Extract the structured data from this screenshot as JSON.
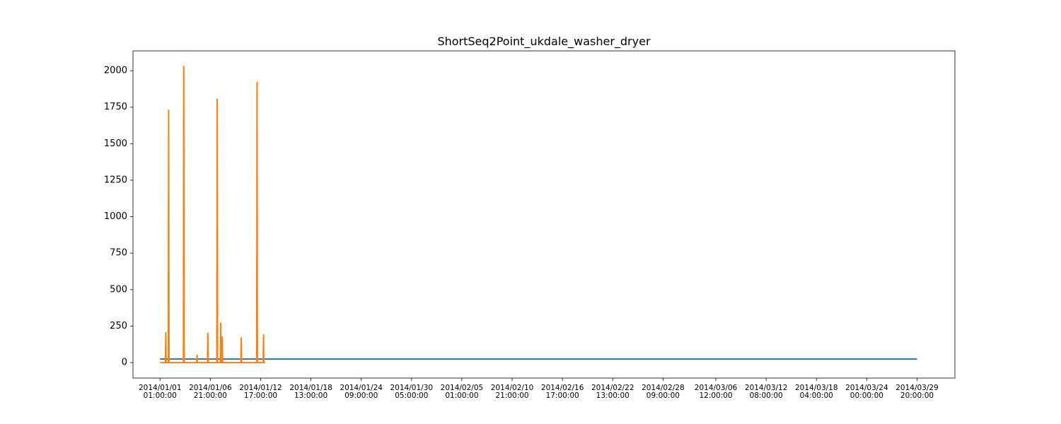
{
  "chart_data": {
    "type": "line",
    "title": "ShortSeq2Point_ukdale_washer_dryer",
    "series": [
      {
        "color": "#1f77b4",
        "x": [
          "2014-01-01T01:00",
          "2014-03-29T20:00"
        ],
        "values": [
          24,
          24
        ]
      },
      {
        "color": "#ff7f0e",
        "x": [
          "2014-01-01T01:00",
          "2014-01-01T16:00",
          "2014-01-01T17:00",
          "2014-01-01T18:00",
          "2014-01-02T00:00",
          "2014-01-02T01:00",
          "2014-01-02T02:00",
          "2014-01-03T18:00",
          "2014-01-03T19:00",
          "2014-01-03T20:00",
          "2014-01-05T07:00",
          "2014-01-05T08:00",
          "2014-01-05T09:00",
          "2014-01-06T13:00",
          "2014-01-06T14:00",
          "2014-01-06T15:00",
          "2014-01-07T15:00",
          "2014-01-07T16:00",
          "2014-01-07T17:00",
          "2014-01-08T01:00",
          "2014-01-08T02:00",
          "2014-01-08T03:00",
          "2014-01-08T05:00",
          "2014-01-08T06:00",
          "2014-01-08T07:00",
          "2014-01-10T10:00",
          "2014-01-10T11:00",
          "2014-01-10T12:00",
          "2014-01-12T06:00",
          "2014-01-12T07:00",
          "2014-01-12T08:00",
          "2014-01-13T00:00",
          "2014-01-13T01:00",
          "2014-01-13T02:00",
          "2014-01-13T05:00"
        ],
        "values": [
          0,
          0,
          205,
          0,
          0,
          1730,
          0,
          0,
          2030,
          0,
          0,
          50,
          0,
          0,
          200,
          0,
          0,
          1805,
          0,
          0,
          270,
          0,
          0,
          175,
          0,
          0,
          170,
          0,
          0,
          1920,
          0,
          0,
          190,
          0,
          0
        ]
      }
    ],
    "xlim": [
      "2013-12-28T21:40",
      "2014-04-03T05:20"
    ],
    "xticks": [
      {
        "value": "2014-01-01T01:00",
        "label": [
          "2014/01/01",
          "01:00:00"
        ]
      },
      {
        "value": "2014-01-06T21:00",
        "label": [
          "2014/01/06",
          "21:00:00"
        ]
      },
      {
        "value": "2014-01-12T17:00",
        "label": [
          "2014/01/12",
          "17:00:00"
        ]
      },
      {
        "value": "2014-01-18T13:00",
        "label": [
          "2014/01/18",
          "13:00:00"
        ]
      },
      {
        "value": "2014-01-24T09:00",
        "label": [
          "2014/01/24",
          "09:00:00"
        ]
      },
      {
        "value": "2014-01-30T05:00",
        "label": [
          "2014/01/30",
          "05:00:00"
        ]
      },
      {
        "value": "2014-02-05T01:00",
        "label": [
          "2014/02/05",
          "01:00:00"
        ]
      },
      {
        "value": "2014-02-10T21:00",
        "label": [
          "2014/02/10",
          "21:00:00"
        ]
      },
      {
        "value": "2014-02-16T17:00",
        "label": [
          "2014/02/16",
          "17:00:00"
        ]
      },
      {
        "value": "2014-02-22T13:00",
        "label": [
          "2014/02/22",
          "13:00:00"
        ]
      },
      {
        "value": "2014-02-28T09:00",
        "label": [
          "2014/02/28",
          "09:00:00"
        ]
      },
      {
        "value": "2014-03-06T12:00",
        "label": [
          "2014/03/06",
          "12:00:00"
        ]
      },
      {
        "value": "2014-03-12T08:00",
        "label": [
          "2014/03/12",
          "08:00:00"
        ]
      },
      {
        "value": "2014-03-18T04:00",
        "label": [
          "2014/03/18",
          "04:00:00"
        ]
      },
      {
        "value": "2014-03-24T00:00",
        "label": [
          "2014/03/24",
          "00:00:00"
        ]
      },
      {
        "value": "2014-03-29T20:00",
        "label": [
          "2014/03/29",
          "20:00:00"
        ]
      }
    ],
    "ylim": [
      -106,
      2136
    ],
    "yticks": [
      0,
      250,
      500,
      750,
      1000,
      1250,
      1500,
      1750,
      2000
    ],
    "grid": false
  }
}
